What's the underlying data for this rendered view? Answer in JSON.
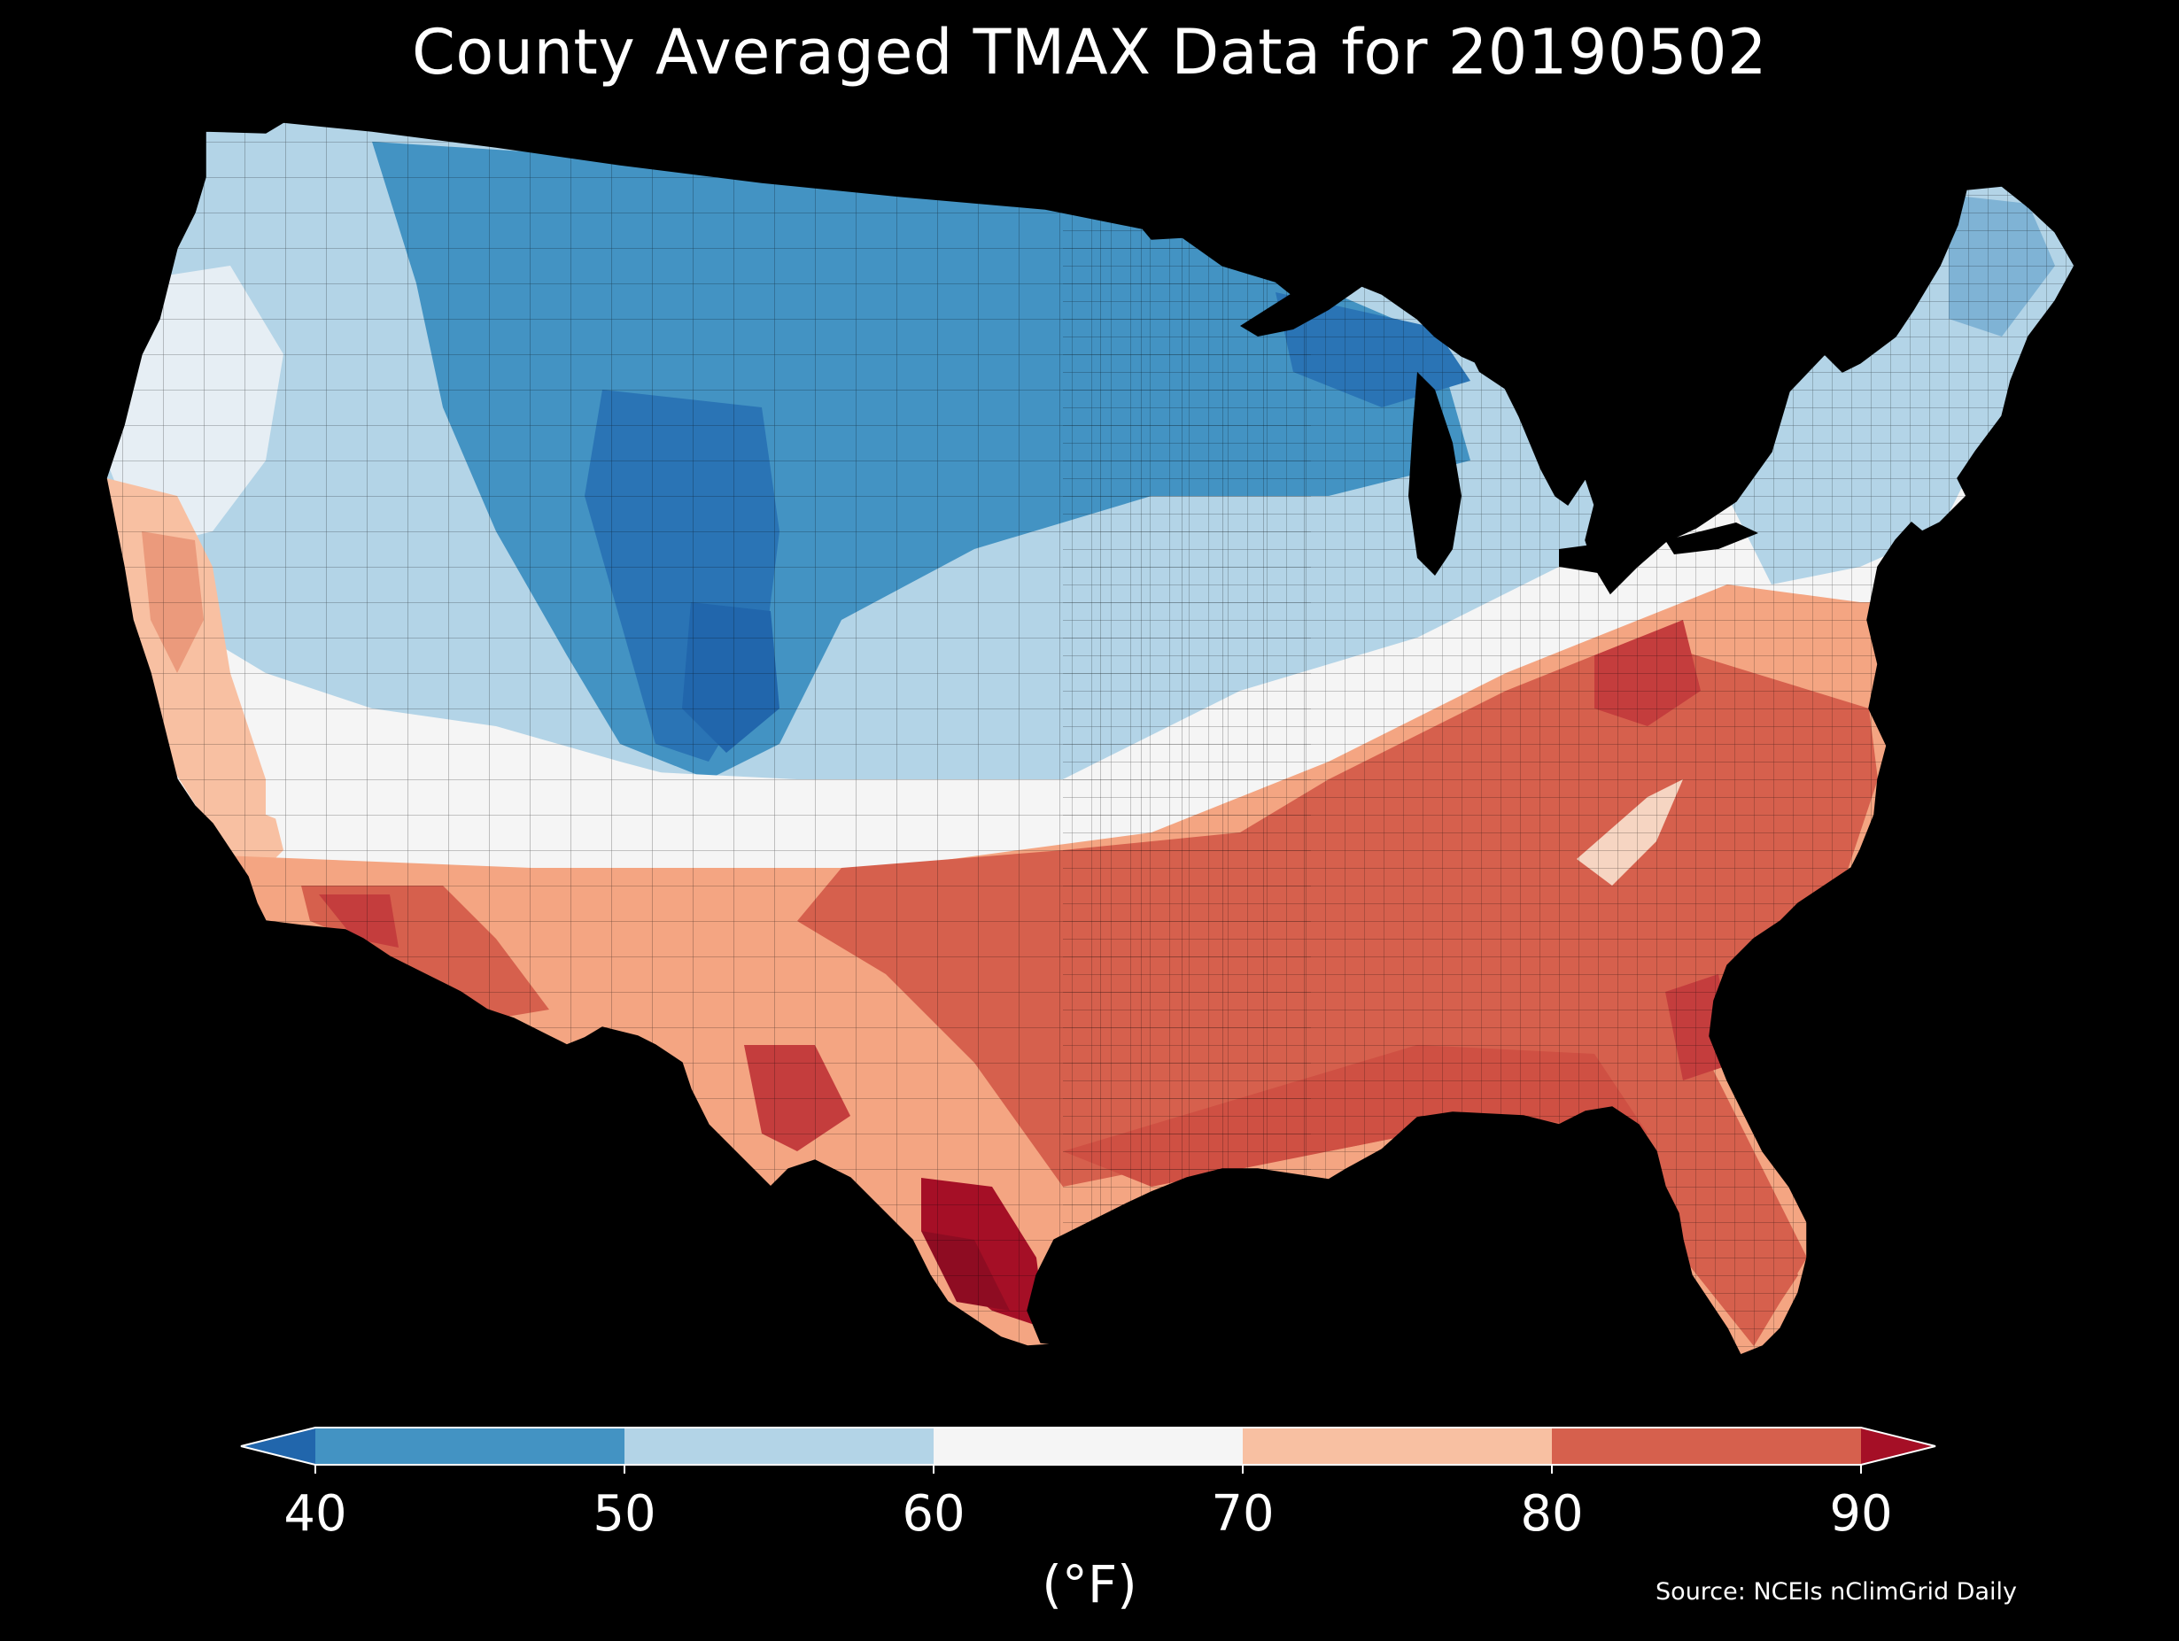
{
  "map": {
    "title": "County Averaged TMAX Data for 20190502",
    "source": "Source: NCEIs nClimGrid Daily",
    "background_color": "#000000",
    "region": "Contiguous United States (county choropleth)",
    "colorbar": {
      "label": "(°F)",
      "ticks": [
        "40",
        "50",
        "60",
        "70",
        "80",
        "90"
      ],
      "bins": [
        {
          "range": "<40",
          "color": "#2166ac"
        },
        {
          "range": "40-50",
          "color": "#4393c3"
        },
        {
          "range": "50-60",
          "color": "#b3d4e7"
        },
        {
          "range": "60-70",
          "color": "#f5f5f5"
        },
        {
          "range": "70-80",
          "color": "#f8c0a2"
        },
        {
          "range": "80-90",
          "color": "#d6604d"
        },
        {
          "range": ">90",
          "color": "#a50f26"
        }
      ],
      "extend": "both"
    }
  },
  "chart_data": {
    "type": "heatmap",
    "title": "County Averaged TMAX Data for 20190502",
    "colorbar_label": "(°F)",
    "value_range": [
      40,
      90
    ],
    "ticks": [
      40,
      50,
      60,
      70,
      80,
      90
    ],
    "colormap": "RdBu_r (discrete 10°F bins)"
  }
}
